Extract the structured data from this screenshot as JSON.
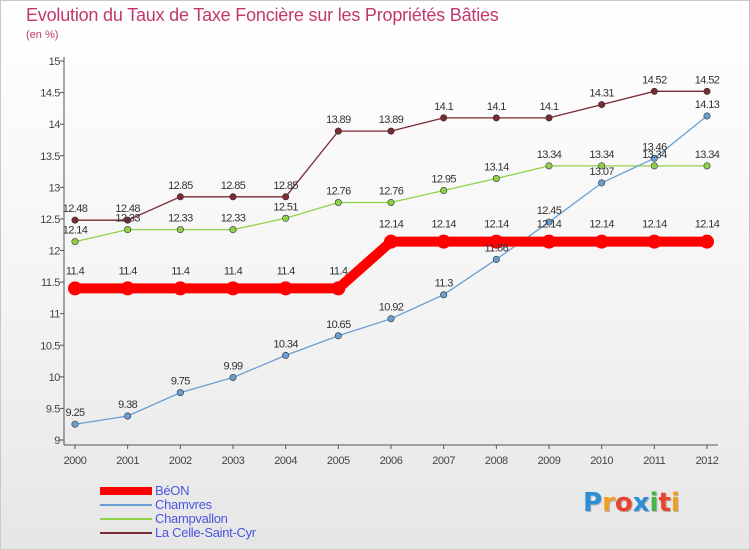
{
  "header": {
    "title": "Evolution du Taux de Taxe Foncière sur les Propriétés Bâties",
    "unit": "(en %)"
  },
  "logo": {
    "text": "Proxiti",
    "colors": [
      "#2b8fd8",
      "#f0a020",
      "#e8452c",
      "#2b8fd8",
      "#46b34a",
      "#e8452c",
      "#f0a020"
    ]
  },
  "chart_data": {
    "type": "line",
    "title": "Evolution du Taux de Taxe Foncière sur les Propriétés Bâties",
    "ylabel": "(en %)",
    "xlabel": "",
    "ylim": [
      9,
      15
    ],
    "yticks": [
      "9",
      "9.5",
      "10",
      "10.5",
      "11",
      "11.5",
      "12",
      "12.5",
      "13",
      "13.5",
      "14",
      "14.5",
      "15"
    ],
    "categories": [
      "2000",
      "2001",
      "2002",
      "2003",
      "2004",
      "2005",
      "2006",
      "2007",
      "2008",
      "2009",
      "2010",
      "2011",
      "2012"
    ],
    "series": [
      {
        "name": "La Celle-Saint-Cyr",
        "color": "#7a2a32",
        "emphasis": false,
        "values": [
          12.48,
          12.48,
          12.85,
          12.85,
          12.85,
          13.89,
          13.89,
          14.1,
          14.1,
          14.1,
          14.31,
          14.52,
          14.52
        ],
        "labels": [
          "12.48",
          "12.48",
          "12.85",
          "12.85",
          "12.85",
          "13.89",
          "13.89",
          "14.1",
          "14.1",
          "14.1",
          "14.31",
          "14.52",
          "14.52"
        ]
      },
      {
        "name": "Champvallon",
        "color": "#8fd24a",
        "emphasis": false,
        "values": [
          12.14,
          12.33,
          12.33,
          12.33,
          12.51,
          12.76,
          12.76,
          12.95,
          13.14,
          13.34,
          13.34,
          13.34,
          13.34
        ],
        "labels": [
          "12.14",
          "12.33",
          "12.33",
          "12.33",
          "12.51",
          "12.76",
          "12.76",
          "12.95",
          "13.14",
          "13.34",
          "13.34",
          "13.34",
          "13.34"
        ]
      },
      {
        "name": "Chamvres",
        "color": "#6a9fd4",
        "emphasis": false,
        "values": [
          9.25,
          9.38,
          9.75,
          9.99,
          10.34,
          10.65,
          10.92,
          11.3,
          11.86,
          12.45,
          13.07,
          13.46,
          14.13
        ],
        "labels": [
          "9.25",
          "9.38",
          "9.75",
          "9.99",
          "10.34",
          "10.65",
          "10.92",
          "11.3",
          "11.86",
          "12.45",
          "13.07",
          "13.46",
          "14.13"
        ]
      },
      {
        "name": "BéON",
        "color": "#ff0000",
        "emphasis": true,
        "values": [
          11.4,
          11.4,
          11.4,
          11.4,
          11.4,
          11.4,
          12.14,
          12.14,
          12.14,
          12.14,
          12.14,
          12.14,
          12.14
        ],
        "labels": [
          "11.4",
          "11.4",
          "11.4",
          "11.4",
          "11.4",
          "11.4",
          "12.14",
          "12.14",
          "12.14",
          "12.14",
          "12.14",
          "12.14",
          "12.14"
        ]
      }
    ],
    "legend": [
      "BéON",
      "Chamvres",
      "Champvallon",
      "La Celle-Saint-Cyr"
    ],
    "grid": false
  }
}
